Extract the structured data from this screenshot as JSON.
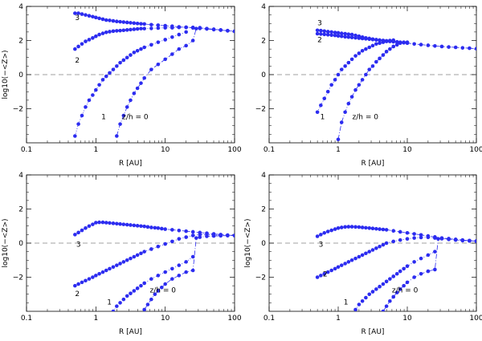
{
  "colors": {
    "marker": "#2c2cf0",
    "line": "#2c2cf0",
    "axis": "#000000",
    "zero_line": "#444444"
  },
  "chart_data": [
    {
      "type": "scatter",
      "panel": "top-left",
      "xlabel": "R [AU]",
      "ylabel": "log10(−<Z>)",
      "xscale": "log",
      "xlim": [
        0.1,
        100
      ],
      "ylim": [
        -4,
        4
      ],
      "xticks": [
        "0.1",
        "1",
        "10",
        "100"
      ],
      "yticks": [
        "−2",
        "0",
        "2",
        "4"
      ],
      "zero_line": true,
      "series": [
        {
          "name": "3",
          "label": "3",
          "x": [
            0.5,
            0.56,
            0.63,
            0.71,
            0.8,
            0.9,
            1.0,
            1.12,
            1.26,
            1.41,
            1.58,
            1.78,
            2.0,
            2.24,
            2.51,
            2.82,
            3.16,
            3.55,
            3.98,
            4.47,
            5.0,
            6.3,
            7.9,
            10,
            12.6,
            15.8,
            20,
            25.1,
            31.6,
            39.8,
            50.1,
            63.1,
            79.4,
            100
          ],
          "y": [
            3.6,
            3.6,
            3.55,
            3.5,
            3.45,
            3.4,
            3.35,
            3.3,
            3.25,
            3.2,
            3.18,
            3.15,
            3.12,
            3.1,
            3.08,
            3.06,
            3.04,
            3.02,
            3.0,
            2.98,
            2.97,
            2.93,
            2.9,
            2.87,
            2.84,
            2.8,
            2.77,
            2.74,
            2.71,
            2.68,
            2.64,
            2.61,
            2.57,
            2.54
          ]
        },
        {
          "name": "2",
          "label": "2",
          "x": [
            0.5,
            0.56,
            0.63,
            0.71,
            0.8,
            0.9,
            1.0,
            1.12,
            1.26,
            1.41,
            1.58,
            1.78,
            2.0,
            2.24,
            2.51,
            2.82,
            3.16,
            3.55,
            3.98,
            4.47,
            5.0,
            6.3,
            7.9,
            10,
            12.6,
            15.8,
            20,
            25.1
          ],
          "y": [
            1.5,
            1.65,
            1.8,
            1.95,
            2.05,
            2.15,
            2.25,
            2.35,
            2.42,
            2.48,
            2.52,
            2.55,
            2.57,
            2.58,
            2.6,
            2.62,
            2.64,
            2.66,
            2.68,
            2.7,
            2.7,
            2.71,
            2.73,
            2.75,
            2.75,
            2.77,
            2.78,
            2.77
          ]
        },
        {
          "name": "1",
          "label": "1",
          "x": [
            0.5,
            0.56,
            0.63,
            0.71,
            0.8,
            0.9,
            1.0,
            1.12,
            1.26,
            1.41,
            1.58,
            1.78,
            2.0,
            2.24,
            2.51,
            2.82,
            3.16,
            3.55,
            3.98,
            4.47,
            5.0,
            6.3,
            7.9,
            10,
            12.6,
            15.8,
            20
          ],
          "y": [
            -3.6,
            -2.9,
            -2.4,
            -1.9,
            -1.5,
            -1.2,
            -0.9,
            -0.6,
            -0.3,
            -0.1,
            0.1,
            0.3,
            0.5,
            0.7,
            0.85,
            1.0,
            1.15,
            1.3,
            1.4,
            1.5,
            1.6,
            1.75,
            1.9,
            2.05,
            2.2,
            2.35,
            2.5
          ]
        },
        {
          "name": "z/h = 0",
          "label": "z/h = 0",
          "x": [
            2.0,
            2.24,
            2.51,
            2.82,
            3.16,
            3.55,
            3.98,
            4.47,
            5.0,
            6.3,
            7.9,
            10,
            12.6,
            15.8,
            20,
            25.1,
            28,
            31.6,
            39.8,
            50.1,
            63.1,
            79.4,
            100
          ],
          "y": [
            -3.6,
            -2.9,
            -2.4,
            -1.9,
            -1.5,
            -1.1,
            -0.8,
            -0.5,
            -0.2,
            0.3,
            0.6,
            0.9,
            1.2,
            1.5,
            1.7,
            2.0,
            2.7,
            2.75,
            2.7,
            2.66,
            2.62,
            2.58,
            2.54
          ]
        }
      ],
      "curve_labels": [
        "3",
        "2",
        "1",
        "z/h = 0"
      ]
    },
    {
      "type": "scatter",
      "panel": "top-right",
      "xlabel": "R [AU]",
      "ylabel": "",
      "xscale": "log",
      "xlim": [
        0.1,
        100
      ],
      "ylim": [
        -4,
        4
      ],
      "xticks": [
        "0.1",
        "1",
        "10",
        "100"
      ],
      "yticks": [
        "−2",
        "0",
        "2",
        "4"
      ],
      "zero_line": true,
      "series": [
        {
          "name": "3",
          "label": "3",
          "x": [
            0.5,
            0.56,
            0.63,
            0.71,
            0.8,
            0.9,
            1.0,
            1.12,
            1.26,
            1.41,
            1.58,
            1.78,
            2.0,
            2.24,
            2.51,
            2.82,
            3.16,
            3.55,
            3.98,
            4.47,
            5.0,
            5.6,
            6.3,
            7.1,
            7.9,
            8.9,
            10,
            12.6,
            15.8,
            20,
            25.1,
            31.6,
            39.8,
            50.1,
            63.1,
            79.4,
            100
          ],
          "y": [
            2.6,
            2.58,
            2.55,
            2.52,
            2.5,
            2.47,
            2.45,
            2.42,
            2.4,
            2.37,
            2.35,
            2.3,
            2.25,
            2.2,
            2.15,
            2.12,
            2.08,
            2.05,
            2.02,
            2.0,
            1.97,
            1.95,
            1.93,
            1.91,
            1.89,
            1.87,
            1.85,
            1.8,
            1.76,
            1.72,
            1.68,
            1.65,
            1.62,
            1.6,
            1.57,
            1.55,
            1.52
          ]
        },
        {
          "name": "2",
          "label": "2",
          "x": [
            0.5,
            0.56,
            0.63,
            0.71,
            0.8,
            0.9,
            1.0,
            1.12,
            1.26,
            1.41,
            1.58,
            1.78,
            2.0,
            2.24,
            2.51,
            2.82,
            3.16,
            3.55,
            3.98,
            4.47,
            5.0,
            5.6,
            6.3,
            7.1,
            7.9,
            8.9,
            10
          ],
          "y": [
            2.4,
            2.38,
            2.36,
            2.34,
            2.32,
            2.3,
            2.27,
            2.25,
            2.22,
            2.2,
            2.18,
            2.16,
            2.14,
            2.12,
            2.1,
            2.08,
            2.06,
            2.04,
            2.02,
            2.0,
            1.98,
            1.96,
            1.94,
            1.92,
            1.9,
            1.88,
            1.86
          ]
        },
        {
          "name": "1",
          "label": "1",
          "x": [
            0.5,
            0.56,
            0.63,
            0.71,
            0.8,
            0.9,
            1.0,
            1.12,
            1.26,
            1.41,
            1.58,
            1.78,
            2.0,
            2.24,
            2.51,
            2.82,
            3.16,
            3.55,
            3.98,
            4.47,
            5.0,
            5.6,
            6.3
          ],
          "y": [
            -2.2,
            -1.8,
            -1.4,
            -1.0,
            -0.6,
            -0.3,
            0.0,
            0.3,
            0.5,
            0.7,
            0.9,
            1.1,
            1.25,
            1.4,
            1.5,
            1.6,
            1.7,
            1.8,
            1.85,
            1.9,
            1.95,
            2.0,
            2.02
          ]
        },
        {
          "name": "z/h = 0",
          "label": "z/h = 0",
          "x": [
            1.0,
            1.12,
            1.26,
            1.41,
            1.58,
            1.78,
            2.0,
            2.24,
            2.51,
            2.82,
            3.16,
            3.55,
            3.98,
            4.47,
            5.0,
            5.6,
            6.3,
            7.1,
            7.9,
            8.9,
            10
          ],
          "y": [
            -3.8,
            -2.8,
            -2.2,
            -1.7,
            -1.3,
            -0.9,
            -0.6,
            -0.3,
            0.0,
            0.3,
            0.5,
            0.75,
            0.95,
            1.15,
            1.35,
            1.5,
            1.65,
            1.75,
            1.85,
            1.9,
            1.9
          ]
        }
      ],
      "curve_labels": [
        "3",
        "2",
        "1",
        "z/h = 0"
      ]
    },
    {
      "type": "scatter",
      "panel": "bottom-left",
      "xlabel": "R [AU]",
      "ylabel": "log10(−<Z>)",
      "xscale": "log",
      "xlim": [
        0.1,
        100
      ],
      "ylim": [
        -4,
        4
      ],
      "xticks": [
        "0.1",
        "1",
        "10",
        "100"
      ],
      "yticks": [
        "−2",
        "0",
        "2",
        "4"
      ],
      "zero_line": true,
      "series": [
        {
          "name": "3",
          "label": "3",
          "x": [
            0.5,
            0.56,
            0.63,
            0.71,
            0.8,
            0.9,
            1.0,
            1.12,
            1.26,
            1.41,
            1.58,
            1.78,
            2.0,
            2.24,
            2.51,
            2.82,
            3.16,
            3.55,
            3.98,
            4.47,
            5.0,
            5.6,
            6.3,
            7.1,
            7.9,
            8.9,
            10,
            12.6,
            15.8,
            20,
            25.1,
            31.6,
            39.8,
            50.1,
            63.1,
            79.4,
            100
          ],
          "y": [
            0.5,
            0.62,
            0.75,
            0.88,
            1.0,
            1.1,
            1.2,
            1.22,
            1.22,
            1.2,
            1.18,
            1.16,
            1.14,
            1.12,
            1.1,
            1.08,
            1.06,
            1.04,
            1.02,
            1.0,
            0.98,
            0.95,
            0.92,
            0.9,
            0.88,
            0.85,
            0.82,
            0.78,
            0.74,
            0.7,
            0.66,
            0.62,
            0.58,
            0.54,
            0.5,
            0.47,
            0.45
          ]
        },
        {
          "name": "2",
          "label": "2",
          "x": [
            0.5,
            0.56,
            0.63,
            0.71,
            0.8,
            0.9,
            1.0,
            1.12,
            1.26,
            1.41,
            1.58,
            1.78,
            2.0,
            2.24,
            2.51,
            2.82,
            3.16,
            3.55,
            3.98,
            4.47,
            5.0,
            6.3,
            7.9,
            10,
            12.6,
            15.8,
            20,
            25.1,
            31.6,
            39.8,
            50.1,
            63.1,
            79.4,
            100
          ],
          "y": [
            -2.5,
            -2.4,
            -2.3,
            -2.2,
            -2.1,
            -2.0,
            -1.9,
            -1.8,
            -1.7,
            -1.6,
            -1.5,
            -1.4,
            -1.3,
            -1.2,
            -1.1,
            -1.0,
            -0.9,
            -0.8,
            -0.7,
            -0.6,
            -0.5,
            -0.35,
            -0.2,
            -0.05,
            0.1,
            0.25,
            0.35,
            0.45,
            0.5,
            0.5,
            0.48,
            0.46,
            0.45,
            0.44
          ]
        },
        {
          "name": "1",
          "label": "1",
          "x": [
            1.78,
            2.0,
            2.24,
            2.51,
            2.82,
            3.16,
            3.55,
            3.98,
            4.47,
            5.0,
            6.3,
            7.9,
            10,
            12.6,
            15.8,
            20,
            25.1
          ],
          "y": [
            -4.0,
            -3.7,
            -3.5,
            -3.3,
            -3.1,
            -2.95,
            -2.8,
            -2.65,
            -2.5,
            -2.35,
            -2.1,
            -1.9,
            -1.7,
            -1.5,
            -1.3,
            -1.1,
            -0.8
          ]
        },
        {
          "name": "z/h = 0",
          "label": "z/h = 0",
          "x": [
            5.0,
            5.6,
            6.3,
            7.1,
            7.9,
            8.9,
            10,
            12.6,
            15.8,
            20,
            25.1,
            28,
            31.6,
            39.8,
            50.1,
            63.1,
            79.4,
            100
          ],
          "y": [
            -3.9,
            -3.6,
            -3.3,
            -3.0,
            -2.8,
            -2.6,
            -2.4,
            -2.1,
            -1.9,
            -1.7,
            -1.6,
            0.3,
            0.35,
            0.4,
            0.42,
            0.43,
            0.44,
            0.44
          ]
        }
      ],
      "curve_labels": [
        "3",
        "2",
        "1",
        "z/h = 0"
      ]
    },
    {
      "type": "scatter",
      "panel": "bottom-right",
      "xlabel": "R [AU]",
      "ylabel": "log10(−<Z>)",
      "xscale": "log",
      "xlim": [
        0.1,
        100
      ],
      "ylim": [
        -4,
        4
      ],
      "xticks": [
        "0.1",
        "1",
        "10",
        "100"
      ],
      "yticks": [
        "−2",
        "0",
        "2",
        "4"
      ],
      "zero_line": true,
      "series": [
        {
          "name": "3",
          "label": "3",
          "x": [
            0.5,
            0.56,
            0.63,
            0.71,
            0.8,
            0.9,
            1.0,
            1.12,
            1.26,
            1.41,
            1.58,
            1.78,
            2.0,
            2.24,
            2.51,
            2.82,
            3.16,
            3.55,
            3.98,
            4.47,
            5.0,
            6.3,
            7.9,
            10,
            12.6,
            15.8,
            20,
            25.1,
            31.6,
            39.8,
            50.1,
            63.1,
            79.4,
            100
          ],
          "y": [
            0.4,
            0.5,
            0.6,
            0.68,
            0.75,
            0.82,
            0.88,
            0.92,
            0.95,
            0.96,
            0.96,
            0.95,
            0.94,
            0.92,
            0.9,
            0.88,
            0.86,
            0.84,
            0.82,
            0.8,
            0.78,
            0.72,
            0.66,
            0.6,
            0.54,
            0.48,
            0.42,
            0.36,
            0.3,
            0.26,
            0.22,
            0.18,
            0.15,
            0.12
          ]
        },
        {
          "name": "2",
          "label": "2",
          "x": [
            0.5,
            0.56,
            0.63,
            0.71,
            0.8,
            0.9,
            1.0,
            1.12,
            1.26,
            1.41,
            1.58,
            1.78,
            2.0,
            2.24,
            2.51,
            2.82,
            3.16,
            3.55,
            3.98,
            4.47,
            5.0,
            6.3,
            7.9,
            10,
            12.6,
            15.8,
            20,
            25.1,
            31.6,
            39.8,
            50.1,
            63.1,
            79.4,
            100
          ],
          "y": [
            -2.0,
            -1.9,
            -1.8,
            -1.7,
            -1.6,
            -1.5,
            -1.4,
            -1.3,
            -1.2,
            -1.1,
            -1.0,
            -0.9,
            -0.8,
            -0.7,
            -0.6,
            -0.5,
            -0.4,
            -0.3,
            -0.2,
            -0.1,
            0.0,
            0.1,
            0.18,
            0.25,
            0.3,
            0.33,
            0.34,
            0.3,
            0.26,
            0.22,
            0.18,
            0.15,
            0.13,
            0.12
          ]
        },
        {
          "name": "1",
          "label": "1",
          "x": [
            1.78,
            2.0,
            2.24,
            2.51,
            2.82,
            3.16,
            3.55,
            3.98,
            4.47,
            5.0,
            5.6,
            6.3,
            7.1,
            7.9,
            8.9,
            10,
            12.6,
            15.8,
            20,
            25.1
          ],
          "y": [
            -3.9,
            -3.6,
            -3.4,
            -3.2,
            -3.0,
            -2.85,
            -2.7,
            -2.55,
            -2.4,
            -2.25,
            -2.1,
            -1.95,
            -1.8,
            -1.65,
            -1.5,
            -1.35,
            -1.1,
            -0.9,
            -0.7,
            -0.5
          ]
        },
        {
          "name": "z/h = 0",
          "label": "z/h = 0",
          "x": [
            4.47,
            5.0,
            5.6,
            6.3,
            7.1,
            7.9,
            8.9,
            10,
            12.6,
            15.8,
            20,
            25.1,
            28,
            31.6,
            39.8,
            50.1,
            63.1,
            79.4,
            100
          ],
          "y": [
            -4.0,
            -3.7,
            -3.4,
            -3.15,
            -2.9,
            -2.7,
            -2.5,
            -2.3,
            -2.0,
            -1.8,
            -1.65,
            -1.55,
            0.25,
            0.28,
            0.25,
            0.2,
            0.16,
            0.13,
            0.12
          ]
        }
      ],
      "curve_labels": [
        "3",
        "2",
        "1",
        "z/h = 0"
      ]
    }
  ]
}
